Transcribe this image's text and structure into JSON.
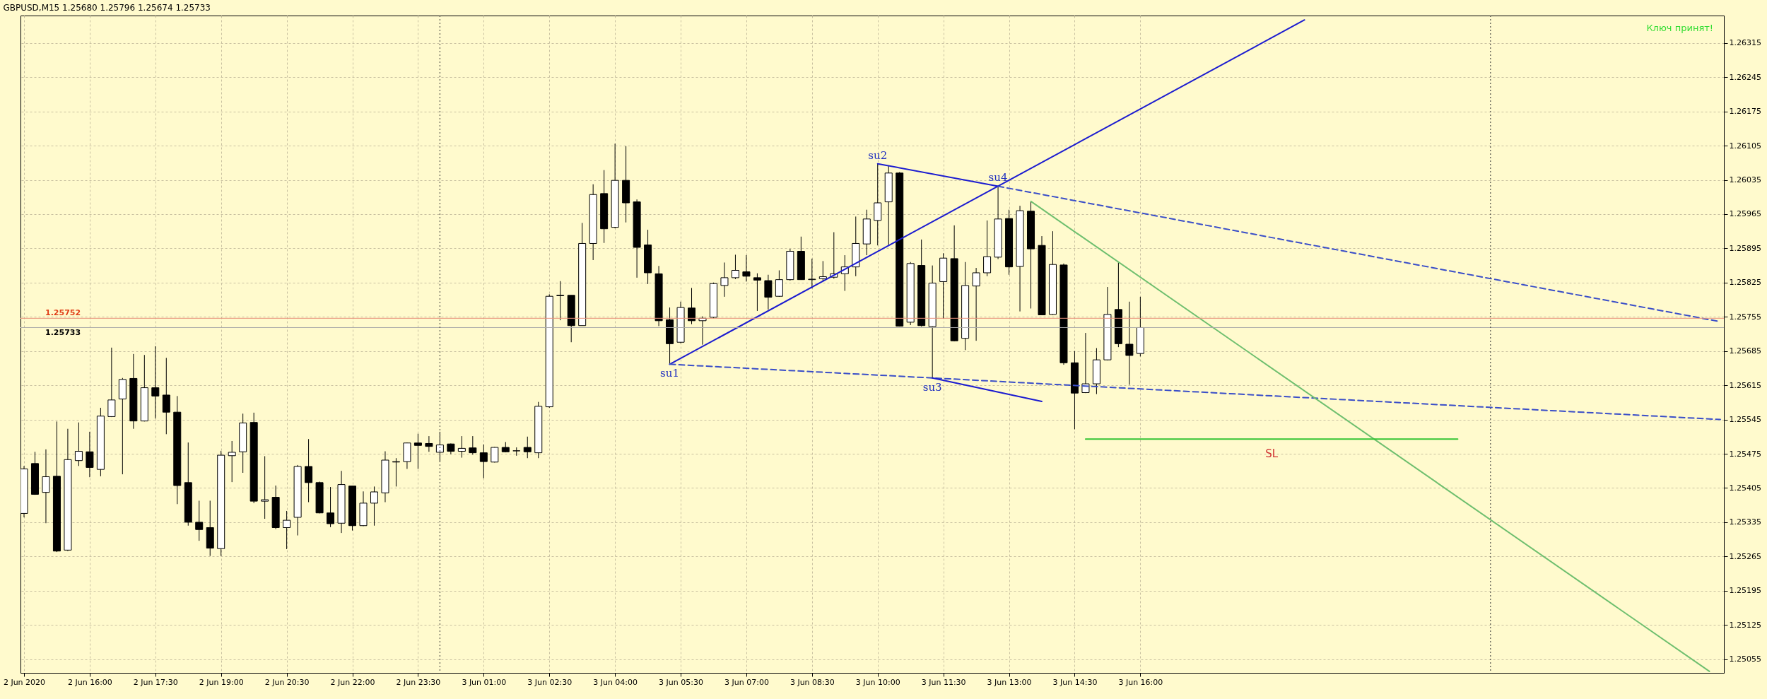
{
  "chart_data": {
    "type": "candlestick",
    "title": "GBPUSD,M15  1.25680 1.25796 1.25674 1.25733",
    "x": [
      "2020-06-02T14:30",
      "2020-06-02T14:45",
      "2020-06-02T15:00",
      "2020-06-02T15:15",
      "2020-06-02T15:30",
      "2020-06-02T15:45",
      "2020-06-02T16:00",
      "2020-06-02T16:15",
      "2020-06-02T16:30",
      "2020-06-02T16:45",
      "2020-06-02T17:00",
      "2020-06-02T17:15",
      "2020-06-02T17:30",
      "2020-06-02T17:45",
      "2020-06-02T18:00",
      "2020-06-02T18:15",
      "2020-06-02T18:30",
      "2020-06-02T18:45",
      "2020-06-02T19:00",
      "2020-06-02T19:15",
      "2020-06-02T19:30",
      "2020-06-02T19:45",
      "2020-06-02T20:00",
      "2020-06-02T20:15",
      "2020-06-02T20:30",
      "2020-06-02T20:45",
      "2020-06-02T21:00",
      "2020-06-02T21:15",
      "2020-06-02T21:30",
      "2020-06-02T21:45",
      "2020-06-02T22:00",
      "2020-06-02T22:15",
      "2020-06-02T22:30",
      "2020-06-02T22:45",
      "2020-06-02T23:00",
      "2020-06-02T23:15",
      "2020-06-02T23:30",
      "2020-06-02T23:45",
      "2020-06-03T00:00",
      "2020-06-03T00:15",
      "2020-06-03T00:30",
      "2020-06-03T00:45",
      "2020-06-03T01:00",
      "2020-06-03T01:15",
      "2020-06-03T01:30",
      "2020-06-03T01:45",
      "2020-06-03T02:00",
      "2020-06-03T02:15",
      "2020-06-03T02:30",
      "2020-06-03T02:45",
      "2020-06-03T03:00",
      "2020-06-03T03:15",
      "2020-06-03T03:30",
      "2020-06-03T03:45",
      "2020-06-03T04:00",
      "2020-06-03T04:15",
      "2020-06-03T04:30",
      "2020-06-03T04:45",
      "2020-06-03T05:00",
      "2020-06-03T05:15",
      "2020-06-03T05:30",
      "2020-06-03T05:45",
      "2020-06-03T06:00",
      "2020-06-03T06:15",
      "2020-06-03T06:30",
      "2020-06-03T06:45",
      "2020-06-03T07:00",
      "2020-06-03T07:15",
      "2020-06-03T07:30",
      "2020-06-03T07:45",
      "2020-06-03T08:00",
      "2020-06-03T08:15",
      "2020-06-03T08:30",
      "2020-06-03T08:45",
      "2020-06-03T09:00",
      "2020-06-03T09:15",
      "2020-06-03T09:30",
      "2020-06-03T09:45",
      "2020-06-03T10:00",
      "2020-06-03T10:15",
      "2020-06-03T10:30",
      "2020-06-03T10:45",
      "2020-06-03T11:00",
      "2020-06-03T11:15",
      "2020-06-03T11:30",
      "2020-06-03T11:45",
      "2020-06-03T12:00",
      "2020-06-03T12:15",
      "2020-06-03T12:30",
      "2020-06-03T12:45",
      "2020-06-03T13:00",
      "2020-06-03T13:15",
      "2020-06-03T13:30",
      "2020-06-03T13:45",
      "2020-06-03T14:00",
      "2020-06-03T14:15",
      "2020-06-03T14:30",
      "2020-06-03T14:45",
      "2020-06-03T15:00",
      "2020-06-03T15:15",
      "2020-06-03T15:30",
      "2020-06-03T15:45",
      "2020-06-03T16:00"
    ],
    "ohlc": [
      [
        1.25353,
        1.2545,
        1.25345,
        1.25444
      ],
      [
        1.25455,
        1.25479,
        1.25391,
        1.25392
      ],
      [
        1.25396,
        1.25484,
        1.25333,
        1.25428
      ],
      [
        1.25429,
        1.25541,
        1.25274,
        1.25276
      ],
      [
        1.25278,
        1.25526,
        1.25276,
        1.25463
      ],
      [
        1.25461,
        1.25539,
        1.2545,
        1.2548
      ],
      [
        1.25479,
        1.2552,
        1.25427,
        1.25447
      ],
      [
        1.25443,
        1.25569,
        1.25429,
        1.25552
      ],
      [
        1.25551,
        1.25692,
        1.2555,
        1.25585
      ],
      [
        1.25587,
        1.2563,
        1.25433,
        1.25627
      ],
      [
        1.25629,
        1.25679,
        1.25526,
        1.25542
      ],
      [
        1.25542,
        1.25677,
        1.25541,
        1.2561
      ],
      [
        1.2561,
        1.25695,
        1.25547,
        1.25593
      ],
      [
        1.25595,
        1.25671,
        1.25515,
        1.2556
      ],
      [
        1.2556,
        1.25593,
        1.25372,
        1.2541
      ],
      [
        1.25416,
        1.25498,
        1.25328,
        1.25335
      ],
      [
        1.25335,
        1.25379,
        1.25297,
        1.2532
      ],
      [
        1.25324,
        1.25379,
        1.25266,
        1.25282
      ],
      [
        1.25281,
        1.25481,
        1.25266,
        1.25472
      ],
      [
        1.25471,
        1.25501,
        1.25417,
        1.25478
      ],
      [
        1.25479,
        1.25557,
        1.25436,
        1.25538
      ],
      [
        1.25539,
        1.25559,
        1.25374,
        1.25378
      ],
      [
        1.25378,
        1.2547,
        1.25342,
        1.25381
      ],
      [
        1.25386,
        1.2541,
        1.25321,
        1.25324
      ],
      [
        1.25324,
        1.25358,
        1.2528,
        1.25339
      ],
      [
        1.25345,
        1.25452,
        1.25308,
        1.25449
      ],
      [
        1.25449,
        1.25505,
        1.25376,
        1.25416
      ],
      [
        1.25416,
        1.25418,
        1.25353,
        1.25354
      ],
      [
        1.25354,
        1.25407,
        1.25325,
        1.25332
      ],
      [
        1.25333,
        1.2544,
        1.25313,
        1.25412
      ],
      [
        1.25409,
        1.25409,
        1.25318,
        1.25328
      ],
      [
        1.25328,
        1.25398,
        1.25327,
        1.25374
      ],
      [
        1.25374,
        1.25408,
        1.25328,
        1.25397
      ],
      [
        1.25395,
        1.2548,
        1.25376,
        1.25462
      ],
      [
        1.25458,
        1.25466,
        1.25408,
        1.25459
      ],
      [
        1.25459,
        1.25498,
        1.25444,
        1.25497
      ],
      [
        1.25497,
        1.25516,
        1.25444,
        1.25492
      ],
      [
        1.25496,
        1.25511,
        1.25479,
        1.2549
      ],
      [
        1.25478,
        1.2552,
        1.25459,
        1.25493
      ],
      [
        1.25495,
        1.25496,
        1.25474,
        1.2548
      ],
      [
        1.2548,
        1.25511,
        1.25467,
        1.25486
      ],
      [
        1.25487,
        1.25511,
        1.25473,
        1.25477
      ],
      [
        1.25477,
        1.25494,
        1.25425,
        1.25459
      ],
      [
        1.25458,
        1.25489,
        1.25457,
        1.25488
      ],
      [
        1.25488,
        1.25499,
        1.25478,
        1.25479
      ],
      [
        1.25481,
        1.25488,
        1.25471,
        1.25481
      ],
      [
        1.25488,
        1.2551,
        1.25466,
        1.25479
      ],
      [
        1.25477,
        1.25581,
        1.25466,
        1.25572
      ],
      [
        1.25571,
        1.25801,
        1.25569,
        1.25797
      ],
      [
        1.25798,
        1.25828,
        1.25748,
        1.25799
      ],
      [
        1.25799,
        1.25799,
        1.25703,
        1.25737
      ],
      [
        1.25737,
        1.25947,
        1.25737,
        1.25905
      ],
      [
        1.25905,
        1.26026,
        1.25871,
        1.26005
      ],
      [
        1.26007,
        1.26055,
        1.25906,
        1.25935
      ],
      [
        1.25938,
        1.26109,
        1.25936,
        1.26034
      ],
      [
        1.26034,
        1.26104,
        1.25948,
        1.25988
      ],
      [
        1.2599,
        1.25995,
        1.25835,
        1.25897
      ],
      [
        1.25902,
        1.25933,
        1.25822,
        1.25845
      ],
      [
        1.25843,
        1.25859,
        1.25736,
        1.25747
      ],
      [
        1.25749,
        1.25774,
        1.25658,
        1.257
      ],
      [
        1.25703,
        1.25786,
        1.25701,
        1.25774
      ],
      [
        1.25773,
        1.25814,
        1.2574,
        1.25747
      ],
      [
        1.25747,
        1.25756,
        1.25698,
        1.25752
      ],
      [
        1.25754,
        1.25825,
        1.25752,
        1.25823
      ],
      [
        1.25819,
        1.25866,
        1.25796,
        1.25835
      ],
      [
        1.25835,
        1.25882,
        1.25832,
        1.2585
      ],
      [
        1.25847,
        1.25881,
        1.25827,
        1.25838
      ],
      [
        1.25835,
        1.25844,
        1.25767,
        1.2583
      ],
      [
        1.25829,
        1.25841,
        1.2577,
        1.25795
      ],
      [
        1.25797,
        1.2585,
        1.25796,
        1.25831
      ],
      [
        1.25831,
        1.25894,
        1.25829,
        1.25889
      ],
      [
        1.25889,
        1.25919,
        1.25831,
        1.25831
      ],
      [
        1.25831,
        1.25874,
        1.25813,
        1.25832
      ],
      [
        1.25833,
        1.25869,
        1.25827,
        1.25837
      ],
      [
        1.25836,
        1.25928,
        1.25833,
        1.25843
      ],
      [
        1.25843,
        1.25881,
        1.25808,
        1.25857
      ],
      [
        1.25857,
        1.2596,
        1.25838,
        1.25905
      ],
      [
        1.25904,
        1.25974,
        1.25881,
        1.25955
      ],
      [
        1.25952,
        1.26068,
        1.25901,
        1.25988
      ],
      [
        1.2599,
        1.26064,
        1.25902,
        1.26049
      ],
      [
        1.26049,
        1.26051,
        1.25735,
        1.25736
      ],
      [
        1.25744,
        1.25867,
        1.25738,
        1.25864
      ],
      [
        1.2586,
        1.25913,
        1.25735,
        1.25737
      ],
      [
        1.25735,
        1.2586,
        1.2563,
        1.25824
      ],
      [
        1.25827,
        1.25885,
        1.25751,
        1.25875
      ],
      [
        1.25874,
        1.25942,
        1.25705,
        1.25706
      ],
      [
        1.25711,
        1.25867,
        1.25687,
        1.25819
      ],
      [
        1.25818,
        1.25855,
        1.25706,
        1.25845
      ],
      [
        1.25845,
        1.25952,
        1.25838,
        1.25878
      ],
      [
        1.25877,
        1.26022,
        1.25873,
        1.25955
      ],
      [
        1.25956,
        1.25974,
        1.25841,
        1.25857
      ],
      [
        1.25858,
        1.25982,
        1.25766,
        1.25972
      ],
      [
        1.25971,
        1.25991,
        1.25772,
        1.25894
      ],
      [
        1.25901,
        1.2592,
        1.25759,
        1.25759
      ],
      [
        1.2576,
        1.2593,
        1.25759,
        1.25862
      ],
      [
        1.25861,
        1.25864,
        1.25657,
        1.25661
      ],
      [
        1.25661,
        1.25685,
        1.25525,
        1.25599
      ],
      [
        1.256,
        1.25722,
        1.25599,
        1.25618
      ],
      [
        1.25618,
        1.25691,
        1.25597,
        1.25667
      ],
      [
        1.25667,
        1.25816,
        1.25666,
        1.2576
      ],
      [
        1.2577,
        1.25867,
        1.25693,
        1.257
      ],
      [
        1.25699,
        1.25786,
        1.25616,
        1.25676
      ],
      [
        1.2568,
        1.25796,
        1.25674,
        1.25733
      ]
    ],
    "series": [
      {
        "type": "line",
        "color": "#1c1cd0",
        "x": [
          "2020-06-03T05:15",
          "2020-06-03T19:45"
        ],
        "values": [
          1.25658,
          1.26362
        ]
      },
      {
        "type": "line",
        "color": "#1c1cd0",
        "x": [
          "2020-06-03T10:00",
          "2020-06-03T12:45"
        ],
        "values": [
          1.26068,
          1.26022
        ]
      },
      {
        "type": "line",
        "color": "#3a4ec8",
        "line_style": "dashed",
        "x": [
          "2020-06-03T12:45",
          "2020-06-04T05:15"
        ],
        "values": [
          1.26022,
          1.25745
        ]
      },
      {
        "type": "line",
        "color": "#3a4ec8",
        "line_style": "dashed",
        "x": [
          "2020-06-03T05:15",
          "2020-06-03T11:15",
          "2020-06-04T05:15"
        ],
        "values": [
          1.25658,
          1.2563,
          1.25545
        ]
      },
      {
        "type": "line",
        "color": "#1c1cd0",
        "x": [
          "2020-06-03T11:15",
          "2020-06-03T13:45"
        ],
        "values": [
          1.2563,
          1.25582
        ]
      },
      {
        "type": "line",
        "color": "#6fbf6f",
        "x": [
          "2020-06-03T13:30",
          "2020-06-04T05:00"
        ],
        "values": [
          1.25991,
          1.2503
        ]
      },
      {
        "type": "line",
        "color": "#33c433",
        "x": [
          "2020-06-03T14:45",
          "2020-06-03T23:15"
        ],
        "values": [
          1.25505,
          1.25505
        ]
      }
    ],
    "ref_lines": [
      {
        "axis": "y",
        "value": 1.25752,
        "label": "1.25752",
        "color": "#e8907a"
      },
      {
        "axis": "y",
        "value": 1.25733,
        "label": "1.25733",
        "color": "#a8a8a8"
      },
      {
        "axis": "x",
        "value": "2020-06-03T00:00",
        "color": "#303030",
        "line_style": "dotted"
      },
      {
        "axis": "x",
        "value": "2020-06-04T00:00",
        "color": "#303030",
        "line_style": "dotted"
      }
    ],
    "annotations": [
      "Ключ принят!",
      {
        "text": "su1",
        "x": "2020-06-03T05:15",
        "y": 1.25658
      },
      {
        "text": "su2",
        "x": "2020-06-03T10:00",
        "y": 1.26068
      },
      {
        "text": "su3",
        "x": "2020-06-03T11:15",
        "y": 1.2563
      },
      {
        "text": "su4",
        "x": "2020-06-03T12:45",
        "y": 1.26022
      },
      {
        "text": "SL",
        "x": "2020-06-03T19:00",
        "y": 1.25505
      }
    ],
    "xlim": [
      "2020-06-02T14:30",
      "2020-06-04T05:15"
    ],
    "xticks": [
      {
        "value": "2020-06-02T14:30",
        "label": "2 Jun 2020"
      },
      {
        "value": "2020-06-02T16:00",
        "label": "2 Jun 16:00"
      },
      {
        "value": "2020-06-02T17:30",
        "label": "2 Jun 17:30"
      },
      {
        "value": "2020-06-02T19:00",
        "label": "2 Jun 19:00"
      },
      {
        "value": "2020-06-02T20:30",
        "label": "2 Jun 20:30"
      },
      {
        "value": "2020-06-02T22:00",
        "label": "2 Jun 22:00"
      },
      {
        "value": "2020-06-02T23:30",
        "label": "2 Jun 23:30"
      },
      {
        "value": "2020-06-03T01:00",
        "label": "3 Jun 01:00"
      },
      {
        "value": "2020-06-03T02:30",
        "label": "3 Jun 02:30"
      },
      {
        "value": "2020-06-03T04:00",
        "label": "3 Jun 04:00"
      },
      {
        "value": "2020-06-03T05:30",
        "label": "3 Jun 05:30"
      },
      {
        "value": "2020-06-03T07:00",
        "label": "3 Jun 07:00"
      },
      {
        "value": "2020-06-03T08:30",
        "label": "3 Jun 08:30"
      },
      {
        "value": "2020-06-03T10:00",
        "label": "3 Jun 10:00"
      },
      {
        "value": "2020-06-03T11:30",
        "label": "3 Jun 11:30"
      },
      {
        "value": "2020-06-03T13:00",
        "label": "3 Jun 13:00"
      },
      {
        "value": "2020-06-03T14:30",
        "label": "3 Jun 14:30"
      },
      {
        "value": "2020-06-03T16:00",
        "label": "3 Jun 16:00"
      }
    ],
    "ylim": [
      1.25027,
      1.26371
    ],
    "yticks": [
      1.25055,
      1.25125,
      1.25195,
      1.25265,
      1.25335,
      1.25405,
      1.25475,
      1.25545,
      1.25615,
      1.25685,
      1.25755,
      1.25825,
      1.25895,
      1.25965,
      1.26035,
      1.26105,
      1.26175,
      1.26245,
      1.26315
    ],
    "grid": true,
    "marker": "none"
  }
}
